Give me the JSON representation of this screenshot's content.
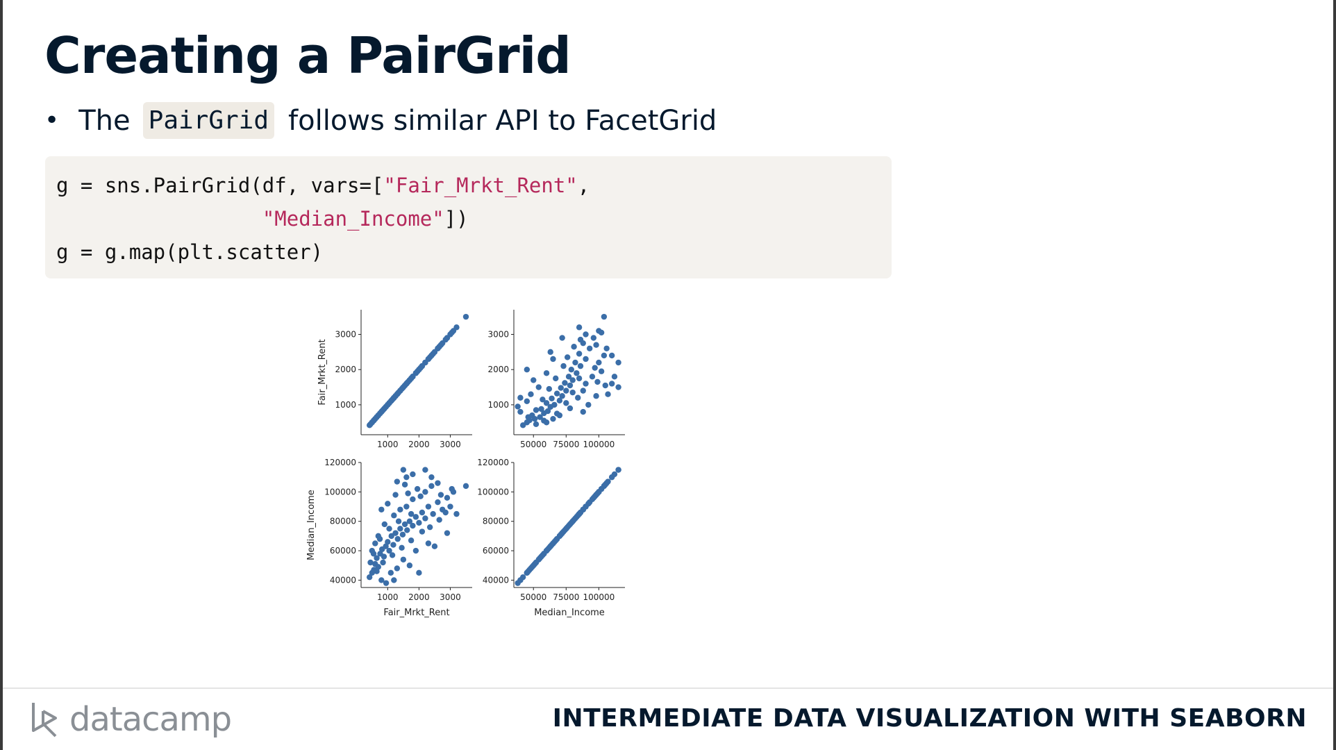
{
  "slide": {
    "title": "Creating a PairGrid",
    "bullet": {
      "prefix": "The",
      "code": "PairGrid",
      "suffix": "follows similar API to FacetGrid"
    },
    "code_lines": [
      [
        {
          "t": "g = sns.PairGrid(df, vars=[",
          "s": false
        },
        {
          "t": "\"Fair_Mrkt_Rent\"",
          "s": true
        },
        {
          "t": ",",
          "s": false
        }
      ],
      [
        {
          "t": "                 ",
          "s": false
        },
        {
          "t": "\"Median_Income\"",
          "s": true
        },
        {
          "t": "])",
          "s": false
        }
      ],
      [
        {
          "t": "g = g.map(plt.scatter)",
          "s": false
        }
      ]
    ]
  },
  "footer": {
    "logo_text": "datacamp",
    "course_title": "INTERMEDIATE DATA VISUALIZATION WITH SEABORN"
  },
  "colors": {
    "point": "#3b6ea8",
    "string": "#b5285b",
    "title": "#05192d"
  },
  "chart_data": {
    "type": "scatter",
    "grid": false,
    "vars": [
      "Fair_Mrkt_Rent",
      "Median_Income"
    ],
    "ranges": {
      "Fair_Mrkt_Rent": [
        150,
        3700
      ],
      "Median_Income": [
        35000,
        120000
      ]
    },
    "ticks": {
      "Fair_Mrkt_Rent": [
        1000,
        2000,
        3000
      ],
      "Median_Income": [
        40000,
        60000,
        80000,
        100000,
        120000
      ]
    },
    "x_tick_labels": {
      "Fair_Mrkt_Rent": [
        "1000",
        "2000",
        "3000"
      ],
      "Median_Income": [
        "50000",
        "75000",
        "100000"
      ]
    },
    "x_tick_values": {
      "Median_Income": [
        50000,
        75000,
        100000
      ]
    },
    "y_tick_labels": {
      "Fair_Mrkt_Rent": [
        "1000",
        "2000",
        "3000"
      ],
      "Median_Income": [
        "40000",
        "60000",
        "80000",
        "100000",
        "120000"
      ]
    },
    "axis_labels": {
      "row0_y": "Fair_Mrkt_Rent",
      "row1_y": "Median_Income",
      "col0_x": "Fair_Mrkt_Rent",
      "col1_x": "Median_Income"
    },
    "series": [
      {
        "points": [
          [
            420,
            42000
          ],
          [
            500,
            45000
          ],
          [
            560,
            47000
          ],
          [
            600,
            51000
          ],
          [
            650,
            55000
          ],
          [
            700,
            49000
          ],
          [
            760,
            58000
          ],
          [
            820,
            61000
          ],
          [
            880,
            56000
          ],
          [
            940,
            63000
          ],
          [
            1000,
            66000
          ],
          [
            1050,
            60000
          ],
          [
            1120,
            70000
          ],
          [
            1180,
            64000
          ],
          [
            1250,
            72000
          ],
          [
            1320,
            68000
          ],
          [
            1400,
            75000
          ],
          [
            1480,
            71000
          ],
          [
            1550,
            78000
          ],
          [
            1620,
            74000
          ],
          [
            1700,
            80000
          ],
          [
            1800,
            77000
          ],
          [
            1900,
            83000
          ],
          [
            2000,
            79000
          ],
          [
            2100,
            86000
          ],
          [
            2200,
            82000
          ],
          [
            2300,
            90000
          ],
          [
            2450,
            85000
          ],
          [
            2600,
            93000
          ],
          [
            2750,
            88000
          ],
          [
            2900,
            96000
          ],
          [
            3100,
            100000
          ],
          [
            3500,
            104000
          ],
          [
            2200,
            100000
          ],
          [
            2400,
            104000
          ],
          [
            2600,
            106000
          ],
          [
            1800,
            95000
          ],
          [
            1600,
            90000
          ],
          [
            1400,
            88000
          ],
          [
            1200,
            84000
          ],
          [
            900,
            78000
          ],
          [
            700,
            70000
          ],
          [
            600,
            65000
          ],
          [
            500,
            60000
          ],
          [
            1900,
            60000
          ],
          [
            2300,
            65000
          ],
          [
            1700,
            50000
          ],
          [
            1500,
            54000
          ],
          [
            1300,
            48000
          ],
          [
            1100,
            45000
          ],
          [
            800,
            40000
          ],
          [
            950,
            38000
          ],
          [
            1200,
            40000
          ],
          [
            2000,
            45000
          ],
          [
            2500,
            63000
          ],
          [
            3200,
            85000
          ],
          [
            2900,
            72000
          ],
          [
            2700,
            98000
          ],
          [
            2200,
            115000
          ],
          [
            1800,
            112000
          ],
          [
            1500,
            115000
          ],
          [
            1300,
            107000
          ],
          [
            3050,
            102000
          ],
          [
            1650,
            99000
          ],
          [
            2050,
            97000
          ],
          [
            1750,
            85000
          ],
          [
            1350,
            80000
          ],
          [
            1050,
            75000
          ],
          [
            750,
            68000
          ],
          [
            550,
            58000
          ],
          [
            450,
            52000
          ],
          [
            650,
            46000
          ],
          [
            850,
            52000
          ],
          [
            1150,
            57000
          ],
          [
            1450,
            62000
          ],
          [
            1750,
            67000
          ],
          [
            2100,
            73000
          ],
          [
            2350,
            76000
          ],
          [
            2650,
            81000
          ],
          [
            2850,
            86000
          ],
          [
            3000,
            90000
          ],
          [
            1950,
            102000
          ],
          [
            1550,
            105000
          ],
          [
            1250,
            98000
          ],
          [
            1000,
            92000
          ],
          [
            800,
            88000
          ],
          [
            1600,
            110000
          ],
          [
            2400,
            110000
          ]
        ]
      }
    ]
  }
}
